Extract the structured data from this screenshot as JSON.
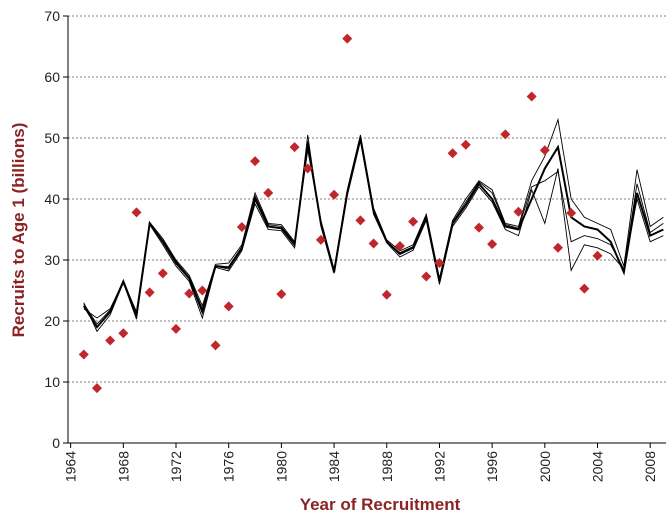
{
  "chart_data": {
    "type": "line",
    "xlabel": "Year of Recruitment",
    "ylabel": "Recruits to Age 1 (billions)",
    "x": [
      1965,
      1966,
      1967,
      1968,
      1969,
      1970,
      1971,
      1972,
      1973,
      1974,
      1975,
      1976,
      1977,
      1978,
      1979,
      1980,
      1981,
      1982,
      1983,
      1984,
      1985,
      1986,
      1987,
      1988,
      1989,
      1990,
      1991,
      1992,
      1993,
      1994,
      1995,
      1996,
      1997,
      1998,
      1999,
      2000,
      2001,
      2002,
      2003,
      2004,
      2005,
      2006,
      2007,
      2008,
      2009
    ],
    "series": [
      {
        "color": "#000000",
        "values": [
          22.5,
          19,
          21.5,
          26.5,
          21,
          36,
          33,
          29.5,
          27,
          21.5,
          29,
          28.8,
          32,
          40,
          35.5,
          35.2,
          32.5,
          49,
          36,
          28,
          41,
          50,
          38,
          33,
          31,
          32,
          37,
          26.5,
          36,
          39,
          42.5,
          40,
          35.5,
          35,
          40,
          45,
          48.5,
          37,
          35.5,
          35,
          33,
          28,
          41,
          34,
          35
        ]
      },
      {
        "color": "#000000",
        "values": [
          23,
          18.3,
          21,
          26.3,
          20.3,
          35.8,
          32.5,
          29,
          26.5,
          20.5,
          28.8,
          28.2,
          31.5,
          39.2,
          35,
          34.8,
          32,
          50.5,
          35.5,
          27.8,
          40.5,
          49.5,
          37.5,
          32.8,
          30.5,
          31.6,
          36.5,
          26,
          35.5,
          38.5,
          42,
          39.5,
          35,
          34,
          41.5,
          36,
          45,
          28.3,
          32.5,
          32,
          31,
          28.5,
          40,
          33,
          34
        ]
      },
      {
        "color": "#000000",
        "values": [
          22,
          20.5,
          22,
          26.5,
          21.5,
          36.2,
          33.5,
          30,
          27.5,
          22.5,
          29.3,
          29.5,
          32.5,
          41,
          36,
          35.8,
          33,
          48,
          36.5,
          28.5,
          41.5,
          50.5,
          38.5,
          33.3,
          31.5,
          32.5,
          37.5,
          27,
          36.5,
          40,
          43,
          41.5,
          36,
          35.5,
          43,
          47,
          53,
          40,
          37,
          36,
          35,
          29,
          44.8,
          35.5,
          37
        ]
      },
      {
        "color": "#000000",
        "values": [
          22.8,
          19.5,
          21.8,
          26.2,
          20.8,
          36,
          33.2,
          29.8,
          27.2,
          22,
          29,
          28.5,
          31.8,
          40.5,
          35.8,
          35.5,
          32.8,
          49.5,
          36.2,
          28.2,
          41.2,
          50.2,
          38,
          33,
          31.2,
          32.2,
          37.2,
          26.8,
          36.2,
          39.5,
          42.8,
          41,
          35.8,
          35.2,
          42,
          43,
          44.5,
          33,
          34,
          33.5,
          32.5,
          28.5,
          42.5,
          34.5,
          36
        ]
      },
      {
        "type": "scatter",
        "marker": "diamond",
        "color": "#c0262c",
        "x": [
          1965,
          1966,
          1967,
          1968,
          1969,
          1970,
          1971,
          1972,
          1973,
          1974,
          1975,
          1976,
          1977,
          1978,
          1979,
          1980,
          1981,
          1982,
          1983,
          1984,
          1985,
          1986,
          1987,
          1988,
          1989,
          1990,
          1991,
          1992,
          1993,
          1994,
          1995,
          1996,
          1997,
          1998,
          1999,
          2000,
          2001,
          2002,
          2003,
          2004
        ],
        "values": [
          14.5,
          9,
          16.8,
          18,
          37.8,
          24.7,
          27.8,
          18.7,
          24.5,
          25,
          16,
          22.4,
          35.4,
          46.2,
          41,
          24.4,
          48.5,
          45,
          33.3,
          40.7,
          66.3,
          36.5,
          32.7,
          24.3,
          32.3,
          36.3,
          27.3,
          29.5,
          47.5,
          48.9,
          35.3,
          32.6,
          50.6,
          37.9,
          56.8,
          48,
          32,
          37.7,
          25.3,
          30.7
        ]
      }
    ],
    "xlim": [
      1963.8,
      2009.2
    ],
    "xticks": [
      1964,
      1968,
      1972,
      1976,
      1980,
      1984,
      1988,
      1992,
      1996,
      2000,
      2004,
      2008
    ],
    "ylim": [
      0,
      70
    ],
    "yticks": [
      0,
      10,
      20,
      30,
      40,
      50,
      60,
      70
    ],
    "grid": true,
    "title_color": "#8b2323"
  }
}
